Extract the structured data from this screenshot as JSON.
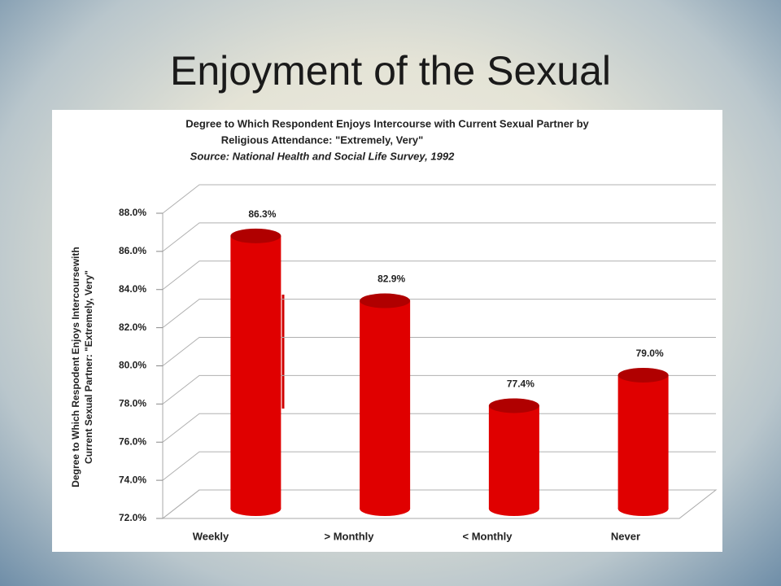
{
  "slide_title": "Enjoyment of the Sexual",
  "chart_data": {
    "type": "bar3d",
    "title": "Degree to Which Respondent Enjoys Intercourse with Current Sexual Partner by",
    "subtitle": "Religious Attendance: \"Extremely, Very\"",
    "source": "Source: National Health and Social Life Survey, 1992",
    "y_label": [
      "Degree to Which Respodent Enjoys Intercoursewith",
      "Current Sexual Partner: \"Extremely, Very\""
    ],
    "categories": [
      "Weekly",
      "> Monthly",
      "< Monthly",
      "Never"
    ],
    "values": [
      86.3,
      82.9,
      77.4,
      79.0
    ],
    "value_labels": [
      "86.3%",
      "82.9%",
      "77.4%",
      "79.0%"
    ],
    "color": "#e00000",
    "ylim": [
      72,
      88
    ],
    "yticks": [
      {
        "value": 72,
        "label": "72.0%"
      },
      {
        "value": 74,
        "label": "74.0%"
      },
      {
        "value": 76,
        "label": "76.0%"
      },
      {
        "value": 78,
        "label": "78.0%"
      },
      {
        "value": 80,
        "label": "80.0%"
      },
      {
        "value": 82,
        "label": "82.0%"
      },
      {
        "value": 84,
        "label": "84.0%"
      },
      {
        "value": 86,
        "label": "86.0%"
      },
      {
        "value": 88,
        "label": "88.0%"
      }
    ],
    "grid": true
  }
}
